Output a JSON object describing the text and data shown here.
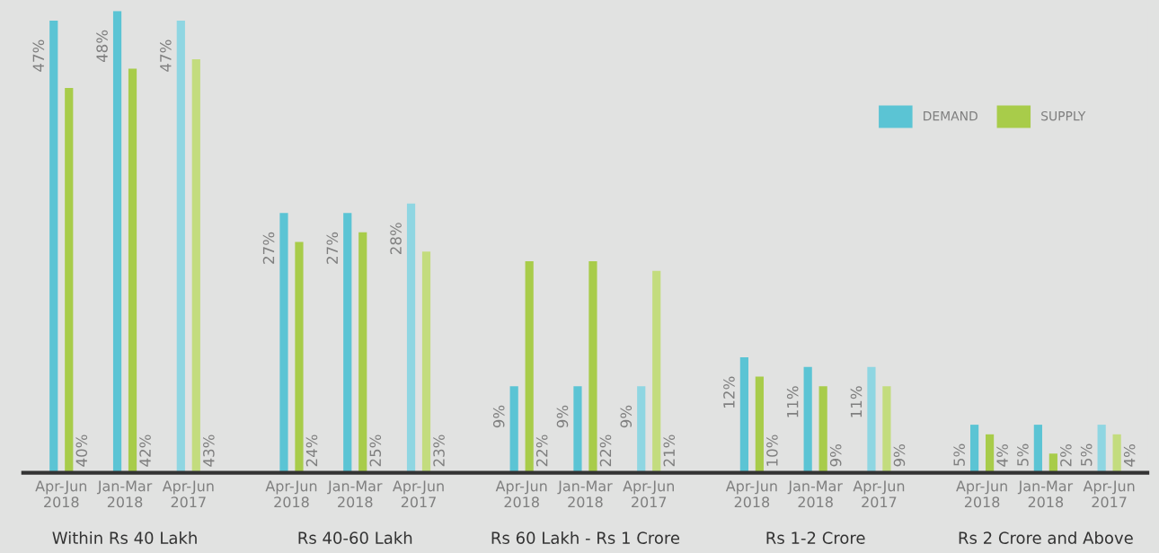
{
  "chart_data": {
    "type": "bar",
    "categories": [
      "Apr-Jun\n2018",
      "Jan-Mar\n2018",
      "Apr-Jun\n2017",
      "Apr-Jun\n2018",
      "Jan-Mar\n2018",
      "Apr-Jun\n2017",
      "Apr-Jun\n2018",
      "Jan-Mar\n2018",
      "Apr-Jun\n2017",
      "Apr-Jun\n2018",
      "Jan-Mar\n2018",
      "Apr-Jun\n2017",
      "Apr-Jun\n2018",
      "Jan-Mar\n2018",
      "Apr-Jun\n2017"
    ],
    "series": [
      {
        "name": "DEMAND",
        "color": "#5bc4d4",
        "values": [
          47,
          48,
          47,
          27,
          27,
          28,
          9,
          9,
          9,
          12,
          11,
          11,
          5,
          5,
          5
        ],
        "value_labels": [
          "47%",
          "48%",
          "47%",
          "27%",
          "27%",
          "28%",
          "9%",
          "9%",
          "9%",
          "12%",
          "11%",
          "11%",
          "5%",
          "5%",
          "5%"
        ],
        "colors": [
          "#5bc4d4",
          "#5bc4d4",
          "#8fd6e2",
          "#5bc4d4",
          "#5bc4d4",
          "#8fd6e2",
          "#5bc4d4",
          "#5bc4d4",
          "#8fd6e2",
          "#5bc4d4",
          "#5bc4d4",
          "#8fd6e2",
          "#5bc4d4",
          "#5bc4d4",
          "#8fd6e2"
        ]
      },
      {
        "name": "SUPPLY",
        "color": "#a8cc4a",
        "values": [
          40,
          42,
          43,
          24,
          25,
          23,
          22,
          22,
          21,
          10,
          9,
          9,
          4,
          2,
          4
        ],
        "value_labels": [
          "40%",
          "42%",
          "43%",
          "24%",
          "25%",
          "23%",
          "22%",
          "22%",
          "21%",
          "10%",
          "9%",
          "9%",
          "4%",
          "2%",
          "4%"
        ],
        "colors": [
          "#a8cc4a",
          "#a8cc4a",
          "#c3dc7e",
          "#a8cc4a",
          "#a8cc4a",
          "#c3dc7e",
          "#a8cc4a",
          "#a8cc4a",
          "#c3dc7e",
          "#a8cc4a",
          "#a8cc4a",
          "#c3dc7e",
          "#a8cc4a",
          "#a8cc4a",
          "#c3dc7e"
        ]
      }
    ],
    "annotations": [
      "Within Rs 40 Lakh",
      "Rs 40-60 Lakh",
      "Rs 60 Lakh - Rs 1 Crore",
      "Rs 1-2 Crore",
      "Rs 2 Crore and Above"
    ],
    "legend": "top right",
    "grid": false
  }
}
